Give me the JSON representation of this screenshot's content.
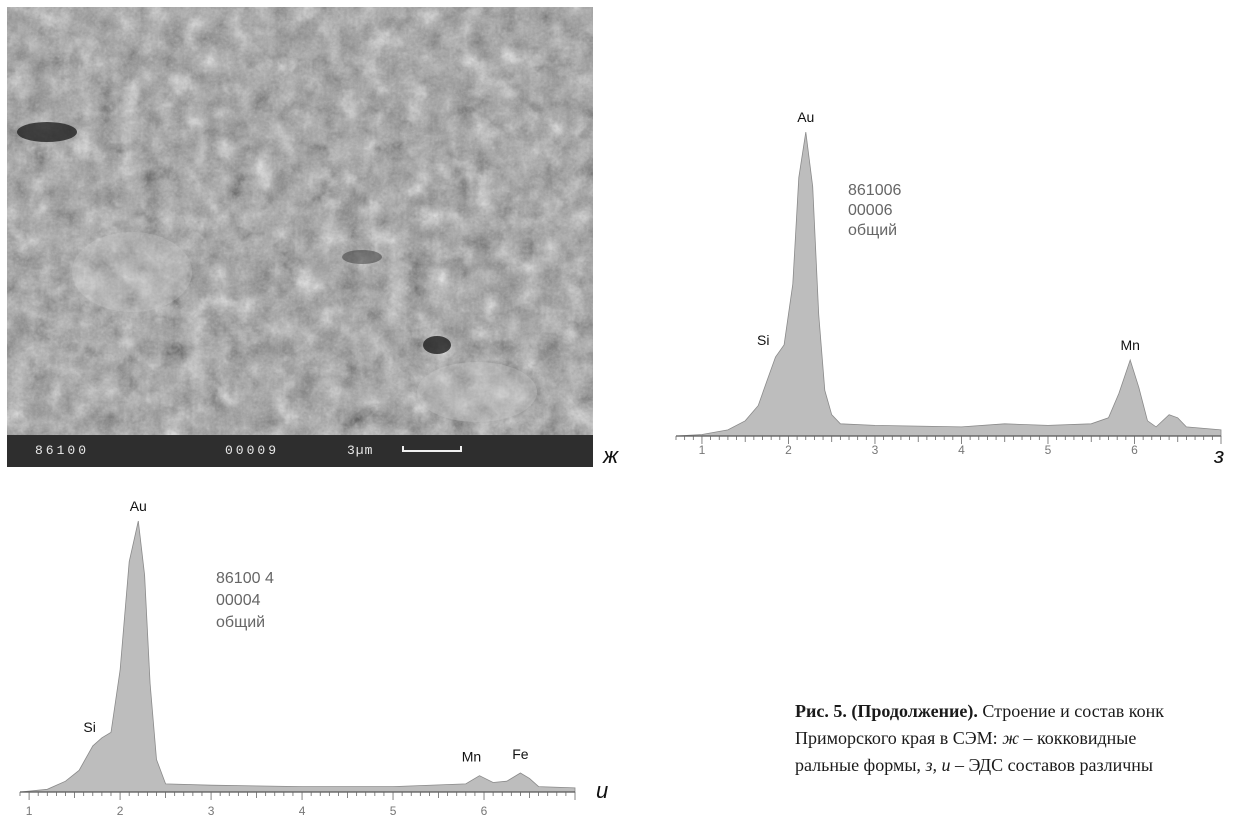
{
  "sem_image": {
    "bar_texts": [
      "86100",
      "00009",
      "3µm"
    ],
    "panel_letter": "ж"
  },
  "chart_data": [
    {
      "type": "area",
      "panel_letter": "з",
      "info_lines": [
        "861006",
        "00006",
        "общий"
      ],
      "x_ticks": [
        "1",
        "2",
        "3",
        "4",
        "5",
        "6"
      ],
      "xlim": [
        0.7,
        7.0
      ],
      "peaks": [
        {
          "label": "Au",
          "x": 2.2,
          "height": 1.0
        },
        {
          "label": "Si",
          "x": 1.85,
          "height": 0.28
        },
        {
          "label": "Mn",
          "x": 5.95,
          "height": 0.25
        }
      ],
      "profile": [
        [
          0.7,
          0
        ],
        [
          1.0,
          0.005
        ],
        [
          1.3,
          0.02
        ],
        [
          1.5,
          0.05
        ],
        [
          1.65,
          0.1
        ],
        [
          1.75,
          0.18
        ],
        [
          1.85,
          0.26
        ],
        [
          1.95,
          0.3
        ],
        [
          2.05,
          0.5
        ],
        [
          2.12,
          0.85
        ],
        [
          2.2,
          1.0
        ],
        [
          2.28,
          0.82
        ],
        [
          2.35,
          0.4
        ],
        [
          2.42,
          0.15
        ],
        [
          2.5,
          0.07
        ],
        [
          2.6,
          0.04
        ],
        [
          3.0,
          0.035
        ],
        [
          4.0,
          0.03
        ],
        [
          4.5,
          0.04
        ],
        [
          5.0,
          0.035
        ],
        [
          5.5,
          0.04
        ],
        [
          5.7,
          0.06
        ],
        [
          5.82,
          0.14
        ],
        [
          5.95,
          0.25
        ],
        [
          6.05,
          0.16
        ],
        [
          6.15,
          0.05
        ],
        [
          6.25,
          0.03
        ],
        [
          6.4,
          0.07
        ],
        [
          6.5,
          0.06
        ],
        [
          6.6,
          0.03
        ],
        [
          7.0,
          0.02
        ]
      ]
    },
    {
      "type": "area",
      "panel_letter": "и",
      "info_lines": [
        "86100 4",
        "00004",
        "общий"
      ],
      "x_ticks": [
        "1",
        "2",
        "3",
        "4",
        "5",
        "6"
      ],
      "xlim": [
        0.9,
        7.0
      ],
      "peaks": [
        {
          "label": "Au",
          "x": 2.2,
          "height": 1.0
        },
        {
          "label": "Si",
          "x": 1.8,
          "height": 0.2
        },
        {
          "label": "Mn",
          "x": 5.95,
          "height": 0.06
        },
        {
          "label": "Fe",
          "x": 6.4,
          "height": 0.07
        }
      ],
      "profile": [
        [
          0.9,
          0
        ],
        [
          1.2,
          0.01
        ],
        [
          1.4,
          0.04
        ],
        [
          1.55,
          0.08
        ],
        [
          1.7,
          0.17
        ],
        [
          1.8,
          0.2
        ],
        [
          1.9,
          0.22
        ],
        [
          2.0,
          0.45
        ],
        [
          2.1,
          0.85
        ],
        [
          2.2,
          1.0
        ],
        [
          2.27,
          0.8
        ],
        [
          2.33,
          0.4
        ],
        [
          2.4,
          0.12
        ],
        [
          2.5,
          0.03
        ],
        [
          3.0,
          0.025
        ],
        [
          4.0,
          0.02
        ],
        [
          5.0,
          0.02
        ],
        [
          5.8,
          0.03
        ],
        [
          5.95,
          0.06
        ],
        [
          6.1,
          0.035
        ],
        [
          6.25,
          0.04
        ],
        [
          6.4,
          0.07
        ],
        [
          6.5,
          0.05
        ],
        [
          6.6,
          0.02
        ],
        [
          7.0,
          0.015
        ]
      ]
    }
  ],
  "caption": {
    "bold": "Рис. 5. (Продолжение).",
    "line1_rest": " Строение и состав конк",
    "line2_start": "Приморского края в СЭМ: ",
    "ital_zh": "ж",
    "line2_rest": " – кокковидные",
    "line3_start": "ральные формы, ",
    "ital_zi": "з, и",
    "line3_rest": " – ЭДС составов различны"
  }
}
